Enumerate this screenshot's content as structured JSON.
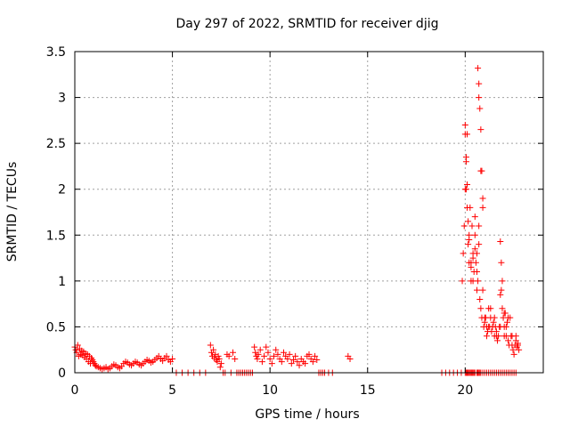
{
  "chart_data": {
    "type": "scatter",
    "title": "Day 297 of 2022, SRMTID for receiver djig",
    "xlabel": "GPS time / hours",
    "ylabel": "SRMTID / TECUs",
    "xlim": [
      0,
      24
    ],
    "ylim": [
      0,
      3.5
    ],
    "xticks": [
      0,
      5,
      10,
      15,
      20
    ],
    "xtick_labels": [
      "0",
      "5",
      "10",
      "15",
      "20"
    ],
    "yticks": [
      0,
      0.5,
      1,
      1.5,
      2,
      2.5,
      3,
      3.5
    ],
    "ytick_labels": [
      "0",
      "0.5",
      "1",
      "1.5",
      "2",
      "2.5",
      "3",
      "3.5"
    ],
    "grid": true,
    "marker": "+",
    "series": [
      {
        "name": "SRMTID",
        "color": "#ff0000",
        "x": [
          0.0,
          0.05,
          0.1,
          0.15,
          0.2,
          0.25,
          0.3,
          0.35,
          0.4,
          0.45,
          0.5,
          0.55,
          0.6,
          0.65,
          0.7,
          0.75,
          0.8,
          0.85,
          0.9,
          0.95,
          1.0,
          1.05,
          1.1,
          1.2,
          1.3,
          1.4,
          1.5,
          1.6,
          1.7,
          1.8,
          1.9,
          2.0,
          2.1,
          2.2,
          2.3,
          2.4,
          2.5,
          2.6,
          2.7,
          2.8,
          2.9,
          3.0,
          3.1,
          3.2,
          3.3,
          3.4,
          3.5,
          3.6,
          3.7,
          3.8,
          3.9,
          4.0,
          4.1,
          4.2,
          4.3,
          4.4,
          4.5,
          4.6,
          4.7,
          4.8,
          4.9,
          5.0,
          5.2,
          5.5,
          5.8,
          6.1,
          6.4,
          6.7,
          6.95,
          7.0,
          7.05,
          7.1,
          7.15,
          7.2,
          7.25,
          7.3,
          7.35,
          7.4,
          7.45,
          7.5,
          7.6,
          7.7,
          7.8,
          7.9,
          8.0,
          8.1,
          8.2,
          8.3,
          8.4,
          8.5,
          8.6,
          8.7,
          8.8,
          8.9,
          9.0,
          9.1,
          9.2,
          9.25,
          9.3,
          9.35,
          9.4,
          9.5,
          9.6,
          9.7,
          9.8,
          9.9,
          10.0,
          10.1,
          10.2,
          10.3,
          10.4,
          10.5,
          10.6,
          10.7,
          10.8,
          10.9,
          11.0,
          11.1,
          11.2,
          11.3,
          11.4,
          11.5,
          11.6,
          11.7,
          11.8,
          11.9,
          12.0,
          12.1,
          12.2,
          12.3,
          12.4,
          12.5,
          12.6,
          12.7,
          12.8,
          13.0,
          13.2,
          14.0,
          14.1,
          18.8,
          19.0,
          19.2,
          19.4,
          19.6,
          19.8,
          19.85,
          19.9,
          19.95,
          20.0,
          20.05,
          20.1,
          20.15,
          20.2,
          20.25,
          20.3,
          20.35,
          20.4,
          20.45,
          20.5,
          20.55,
          20.6,
          20.65,
          20.7,
          20.75,
          20.8,
          20.85,
          20.9,
          20.95,
          21.0,
          21.05,
          21.1,
          21.15,
          21.2,
          21.25,
          21.3,
          21.35,
          21.4,
          21.45,
          21.5,
          21.55,
          21.6,
          21.65,
          21.7,
          21.75,
          21.8,
          21.85,
          21.9,
          21.95,
          22.0,
          22.05,
          22.1,
          22.15,
          22.2,
          22.25,
          22.3,
          22.35,
          22.4,
          22.45,
          22.5,
          22.55,
          22.6,
          22.65,
          22.7,
          22.75,
          20.0,
          20.05,
          20.1,
          20.15,
          20.2,
          20.25,
          20.3,
          20.35,
          20.4,
          20.45,
          20.5,
          20.6,
          20.65,
          20.7,
          20.75,
          20.8,
          20.9,
          21.0,
          21.1,
          21.2,
          21.3,
          21.4,
          21.5,
          21.6,
          21.7,
          21.8,
          21.9,
          22.0,
          22.1,
          22.2,
          22.3,
          22.4,
          22.5,
          22.6,
          20.0,
          20.05,
          20.1,
          20.2,
          20.3,
          20.4,
          20.5,
          20.6,
          20.7,
          20.8,
          20.9,
          21.0,
          21.1,
          21.2,
          21.3,
          21.4,
          21.5,
          21.6,
          21.8,
          22.0,
          22.2,
          22.4,
          22.6,
          22.7,
          20.65,
          20.7,
          20.75,
          20.8,
          20.85,
          20.9,
          20.0,
          20.05,
          20.1,
          20.15,
          20.2,
          20.3,
          20.4,
          20.5,
          20.6,
          20.7,
          21.8,
          21.85,
          21.9,
          22.0,
          22.1
        ],
        "y": [
          0.28,
          0.25,
          0.22,
          0.3,
          0.18,
          0.26,
          0.2,
          0.24,
          0.19,
          0.23,
          0.17,
          0.21,
          0.15,
          0.2,
          0.12,
          0.18,
          0.1,
          0.16,
          0.14,
          0.12,
          0.1,
          0.08,
          0.07,
          0.06,
          0.05,
          0.04,
          0.05,
          0.06,
          0.04,
          0.05,
          0.07,
          0.09,
          0.08,
          0.06,
          0.05,
          0.07,
          0.1,
          0.12,
          0.11,
          0.09,
          0.08,
          0.1,
          0.12,
          0.11,
          0.09,
          0.08,
          0.1,
          0.12,
          0.14,
          0.13,
          0.11,
          0.12,
          0.14,
          0.16,
          0.18,
          0.15,
          0.13,
          0.16,
          0.18,
          0.14,
          0.12,
          0.15,
          0.0,
          0.0,
          0.0,
          0.0,
          0.0,
          0.0,
          0.3,
          0.22,
          0.18,
          0.25,
          0.16,
          0.2,
          0.14,
          0.12,
          0.18,
          0.15,
          0.06,
          0.1,
          0.0,
          0.0,
          0.2,
          0.18,
          0.0,
          0.22,
          0.15,
          0.0,
          0.0,
          0.0,
          0.0,
          0.0,
          0.0,
          0.0,
          0.0,
          0.0,
          0.28,
          0.22,
          0.18,
          0.15,
          0.2,
          0.25,
          0.12,
          0.18,
          0.28,
          0.22,
          0.15,
          0.1,
          0.18,
          0.25,
          0.2,
          0.15,
          0.12,
          0.22,
          0.18,
          0.15,
          0.2,
          0.1,
          0.14,
          0.18,
          0.12,
          0.08,
          0.15,
          0.12,
          0.1,
          0.18,
          0.2,
          0.15,
          0.12,
          0.18,
          0.14,
          0.0,
          0.0,
          0.0,
          0.0,
          0.0,
          0.0,
          0.18,
          0.15,
          0.0,
          0.0,
          0.0,
          0.0,
          0.0,
          0.0,
          1.0,
          1.3,
          1.6,
          2.0,
          2.3,
          2.6,
          1.4,
          1.2,
          1.8,
          1.0,
          1.6,
          1.3,
          1.1,
          1.5,
          1.2,
          0.9,
          1.0,
          1.4,
          0.8,
          0.7,
          0.6,
          0.9,
          0.5,
          0.55,
          0.6,
          0.5,
          0.45,
          0.7,
          0.5,
          0.6,
          0.45,
          0.5,
          0.55,
          0.4,
          0.5,
          0.45,
          0.35,
          0.4,
          0.5,
          0.85,
          0.9,
          0.7,
          0.6,
          0.5,
          0.65,
          0.4,
          0.55,
          0.35,
          0.3,
          0.6,
          0.4,
          0.3,
          0.25,
          0.2,
          0.3,
          0.4,
          0.28,
          0.32,
          0.25,
          0.0,
          0.0,
          0.0,
          0.0,
          0.0,
          0.0,
          0.0,
          0.0,
          0.0,
          0.0,
          0.0,
          0.0,
          0.0,
          0.0,
          0.0,
          0.0,
          0.0,
          0.0,
          0.0,
          0.0,
          0.0,
          0.0,
          0.0,
          0.0,
          0.0,
          0.0,
          0.0,
          0.0,
          0.0,
          0.0,
          0.0,
          0.0,
          0.0,
          0.0,
          2.7,
          2.0,
          1.8,
          1.5,
          1.2,
          1.0,
          1.7,
          1.3,
          3.0,
          2.2,
          1.9,
          0.6,
          0.4,
          0.5,
          0.7,
          0.5,
          0.6,
          0.4,
          0.5,
          0.4,
          0.6,
          0.4,
          0.35,
          0.3,
          3.32,
          3.15,
          2.88,
          2.65,
          2.2,
          1.8,
          2.6,
          2.35,
          2.05,
          1.65,
          1.45,
          1.15,
          1.25,
          1.35,
          1.1,
          1.6,
          1.43,
          1.2,
          1.0,
          0.65,
          0.5
        ]
      }
    ]
  }
}
